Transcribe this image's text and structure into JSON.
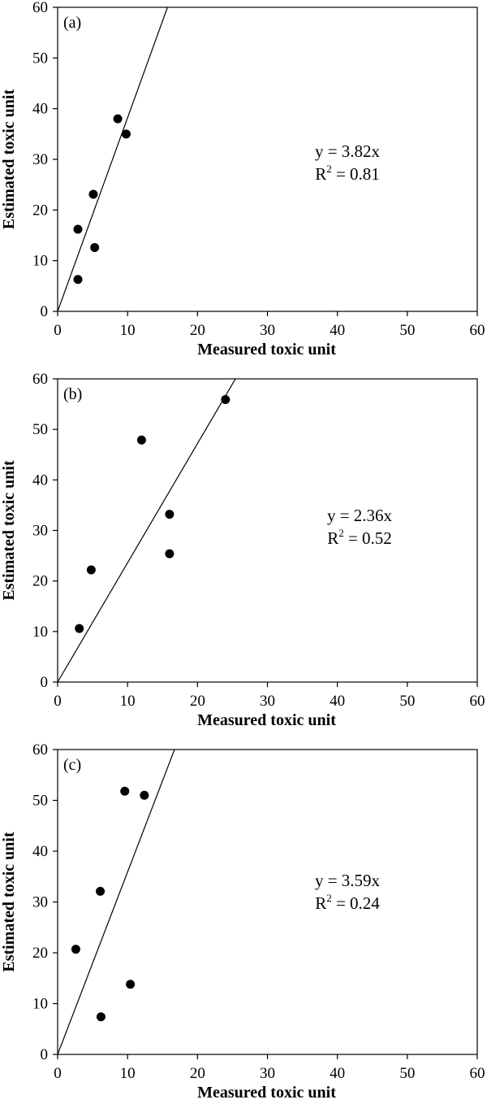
{
  "chart_data": [
    {
      "type": "scatter",
      "panel_label": "(a)",
      "xlabel": "Measured toxic unit",
      "ylabel": "Estimated toxic unit",
      "xlim": [
        0,
        60
      ],
      "ylim": [
        0,
        60
      ],
      "xticks": [
        "0",
        "10",
        "20",
        "30",
        "40",
        "50",
        "60"
      ],
      "yticks": [
        "0",
        "10",
        "20",
        "30",
        "40",
        "50",
        "60"
      ],
      "grid": false,
      "fit": {
        "slope": 3.82,
        "equation": "y = 3.82x",
        "r2_label": "R",
        "r2_sup": "2",
        "r2_value": " = 0.81"
      },
      "points": [
        {
          "x": 2.9,
          "y": 6.3
        },
        {
          "x": 2.9,
          "y": 16.2
        },
        {
          "x": 5.1,
          "y": 23.1
        },
        {
          "x": 5.3,
          "y": 12.6
        },
        {
          "x": 8.6,
          "y": 38.0
        },
        {
          "x": 9.8,
          "y": 35.0
        }
      ]
    },
    {
      "type": "scatter",
      "panel_label": "(b)",
      "xlabel": "Measured toxic unit",
      "ylabel": "Estimated toxic unit",
      "xlim": [
        0,
        60
      ],
      "ylim": [
        0,
        60
      ],
      "xticks": [
        "0",
        "10",
        "20",
        "30",
        "40",
        "50",
        "60"
      ],
      "yticks": [
        "0",
        "10",
        "20",
        "30",
        "40",
        "50",
        "60"
      ],
      "grid": false,
      "fit": {
        "slope": 2.36,
        "equation": "y = 2.36x",
        "r2_label": "R",
        "r2_sup": "2",
        "r2_value": " = 0.52"
      },
      "points": [
        {
          "x": 3.1,
          "y": 10.6
        },
        {
          "x": 4.8,
          "y": 22.2
        },
        {
          "x": 12.0,
          "y": 47.9
        },
        {
          "x": 16.0,
          "y": 33.2
        },
        {
          "x": 16.0,
          "y": 25.4
        },
        {
          "x": 24.0,
          "y": 55.9
        }
      ]
    },
    {
      "type": "scatter",
      "panel_label": "(c)",
      "xlabel": "Measured toxic unit",
      "ylabel": "Estimated toxic unit",
      "xlim": [
        0,
        60
      ],
      "ylim": [
        0,
        60
      ],
      "xticks": [
        "0",
        "10",
        "20",
        "30",
        "40",
        "50",
        "60"
      ],
      "yticks": [
        "0",
        "10",
        "20",
        "30",
        "40",
        "50",
        "60"
      ],
      "grid": false,
      "fit": {
        "slope": 3.59,
        "equation": "y = 3.59x",
        "r2_label": "R",
        "r2_sup": "2",
        "r2_value": " = 0.24"
      },
      "points": [
        {
          "x": 2.6,
          "y": 20.7
        },
        {
          "x": 6.1,
          "y": 32.1
        },
        {
          "x": 6.2,
          "y": 7.4
        },
        {
          "x": 9.6,
          "y": 51.8
        },
        {
          "x": 10.4,
          "y": 13.8
        },
        {
          "x": 12.4,
          "y": 51.0
        }
      ]
    }
  ]
}
